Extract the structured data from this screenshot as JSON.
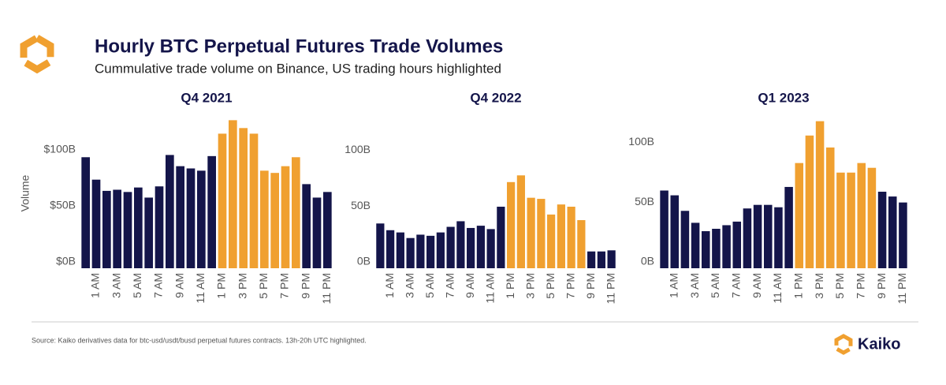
{
  "header": {
    "title": "Hourly BTC Perpetual Futures Trade Volumes",
    "subtitle": "Cummulative trade volume on Binance, US trading hours highlighted"
  },
  "footer": {
    "source": "Source: Kaiko derivatives data for btc-usd/usdt/busd perpetual futures contracts. 13h-20h UTC highlighted.",
    "brand": "Kaiko"
  },
  "chart_data": [
    {
      "type": "bar",
      "title": "Q4 2021",
      "ylabel": "Volume",
      "categories": [
        null,
        "1 AM",
        null,
        "3 AM",
        null,
        "5 AM",
        null,
        "7 AM",
        null,
        "9 AM",
        null,
        "11 AM",
        null,
        "1 PM",
        null,
        "3 PM",
        null,
        "5 PM",
        null,
        "7 PM",
        null,
        "9 PM",
        null,
        "11 PM"
      ],
      "values": [
        99,
        79,
        69,
        70,
        68,
        72,
        63,
        73,
        101,
        91,
        89,
        87,
        100,
        120,
        132,
        125,
        120,
        87,
        85,
        91,
        99,
        75,
        63,
        68
      ],
      "colors": [
        "#14154a",
        "#14154a",
        "#14154a",
        "#14154a",
        "#14154a",
        "#14154a",
        "#14154a",
        "#14154a",
        "#14154a",
        "#14154a",
        "#14154a",
        "#14154a",
        "#14154a",
        "#f0a030",
        "#f0a030",
        "#f0a030",
        "#f0a030",
        "#f0a030",
        "#f0a030",
        "#f0a030",
        "#f0a030",
        "#14154a",
        "#14154a",
        "#14154a"
      ],
      "ylim": [
        0,
        140
      ],
      "yticks": [
        {
          "value": 0,
          "label": "$0B"
        },
        {
          "value": 50,
          "label": "$50B"
        },
        {
          "value": 100,
          "label": "$100B"
        }
      ]
    },
    {
      "type": "bar",
      "title": "Q4 2022",
      "categories": [
        null,
        "1 AM",
        null,
        "3 AM",
        null,
        "5 AM",
        null,
        "7 AM",
        null,
        "9 AM",
        null,
        "11 AM",
        null,
        "1 PM",
        null,
        "3 PM",
        null,
        "5 PM",
        null,
        "7 PM",
        null,
        "9 PM",
        null,
        "11 PM"
      ],
      "values": [
        40,
        34,
        32,
        27,
        30,
        29,
        32,
        37,
        42,
        36,
        38,
        35,
        55,
        77,
        83,
        63,
        62,
        48,
        57,
        55,
        43,
        15,
        15,
        16
      ],
      "colors": [
        "#14154a",
        "#14154a",
        "#14154a",
        "#14154a",
        "#14154a",
        "#14154a",
        "#14154a",
        "#14154a",
        "#14154a",
        "#14154a",
        "#14154a",
        "#14154a",
        "#14154a",
        "#f0a030",
        "#f0a030",
        "#f0a030",
        "#f0a030",
        "#f0a030",
        "#f0a030",
        "#f0a030",
        "#f0a030",
        "#14154a",
        "#14154a",
        "#14154a"
      ],
      "ylim": [
        0,
        110
      ],
      "yticks": [
        {
          "value": 0,
          "label": "0B"
        },
        {
          "value": 50,
          "label": "50B"
        },
        {
          "value": 100,
          "label": "100B"
        }
      ]
    },
    {
      "type": "bar",
      "title": "Q1 2023",
      "categories": [
        null,
        "1 AM",
        null,
        "3 AM",
        null,
        "5 AM",
        null,
        "7 AM",
        null,
        "9 AM",
        null,
        "11 AM",
        null,
        "1 PM",
        null,
        "3 PM",
        null,
        "5 PM",
        null,
        "7 PM",
        null,
        "9 PM",
        null,
        "11 PM"
      ],
      "values": [
        65,
        61,
        48,
        38,
        31,
        33,
        36,
        39,
        50,
        53,
        53,
        51,
        68,
        88,
        111,
        123,
        101,
        80,
        80,
        88,
        84,
        64,
        60,
        55
      ],
      "colors": [
        "#14154a",
        "#14154a",
        "#14154a",
        "#14154a",
        "#14154a",
        "#14154a",
        "#14154a",
        "#14154a",
        "#14154a",
        "#14154a",
        "#14154a",
        "#14154a",
        "#14154a",
        "#f0a030",
        "#f0a030",
        "#f0a030",
        "#f0a030",
        "#f0a030",
        "#f0a030",
        "#f0a030",
        "#f0a030",
        "#14154a",
        "#14154a",
        "#14154a"
      ],
      "ylim": [
        0,
        130
      ],
      "yticks": [
        {
          "value": 0,
          "label": "0B"
        },
        {
          "value": 50,
          "label": "50B"
        },
        {
          "value": 100,
          "label": "100B"
        }
      ]
    }
  ]
}
